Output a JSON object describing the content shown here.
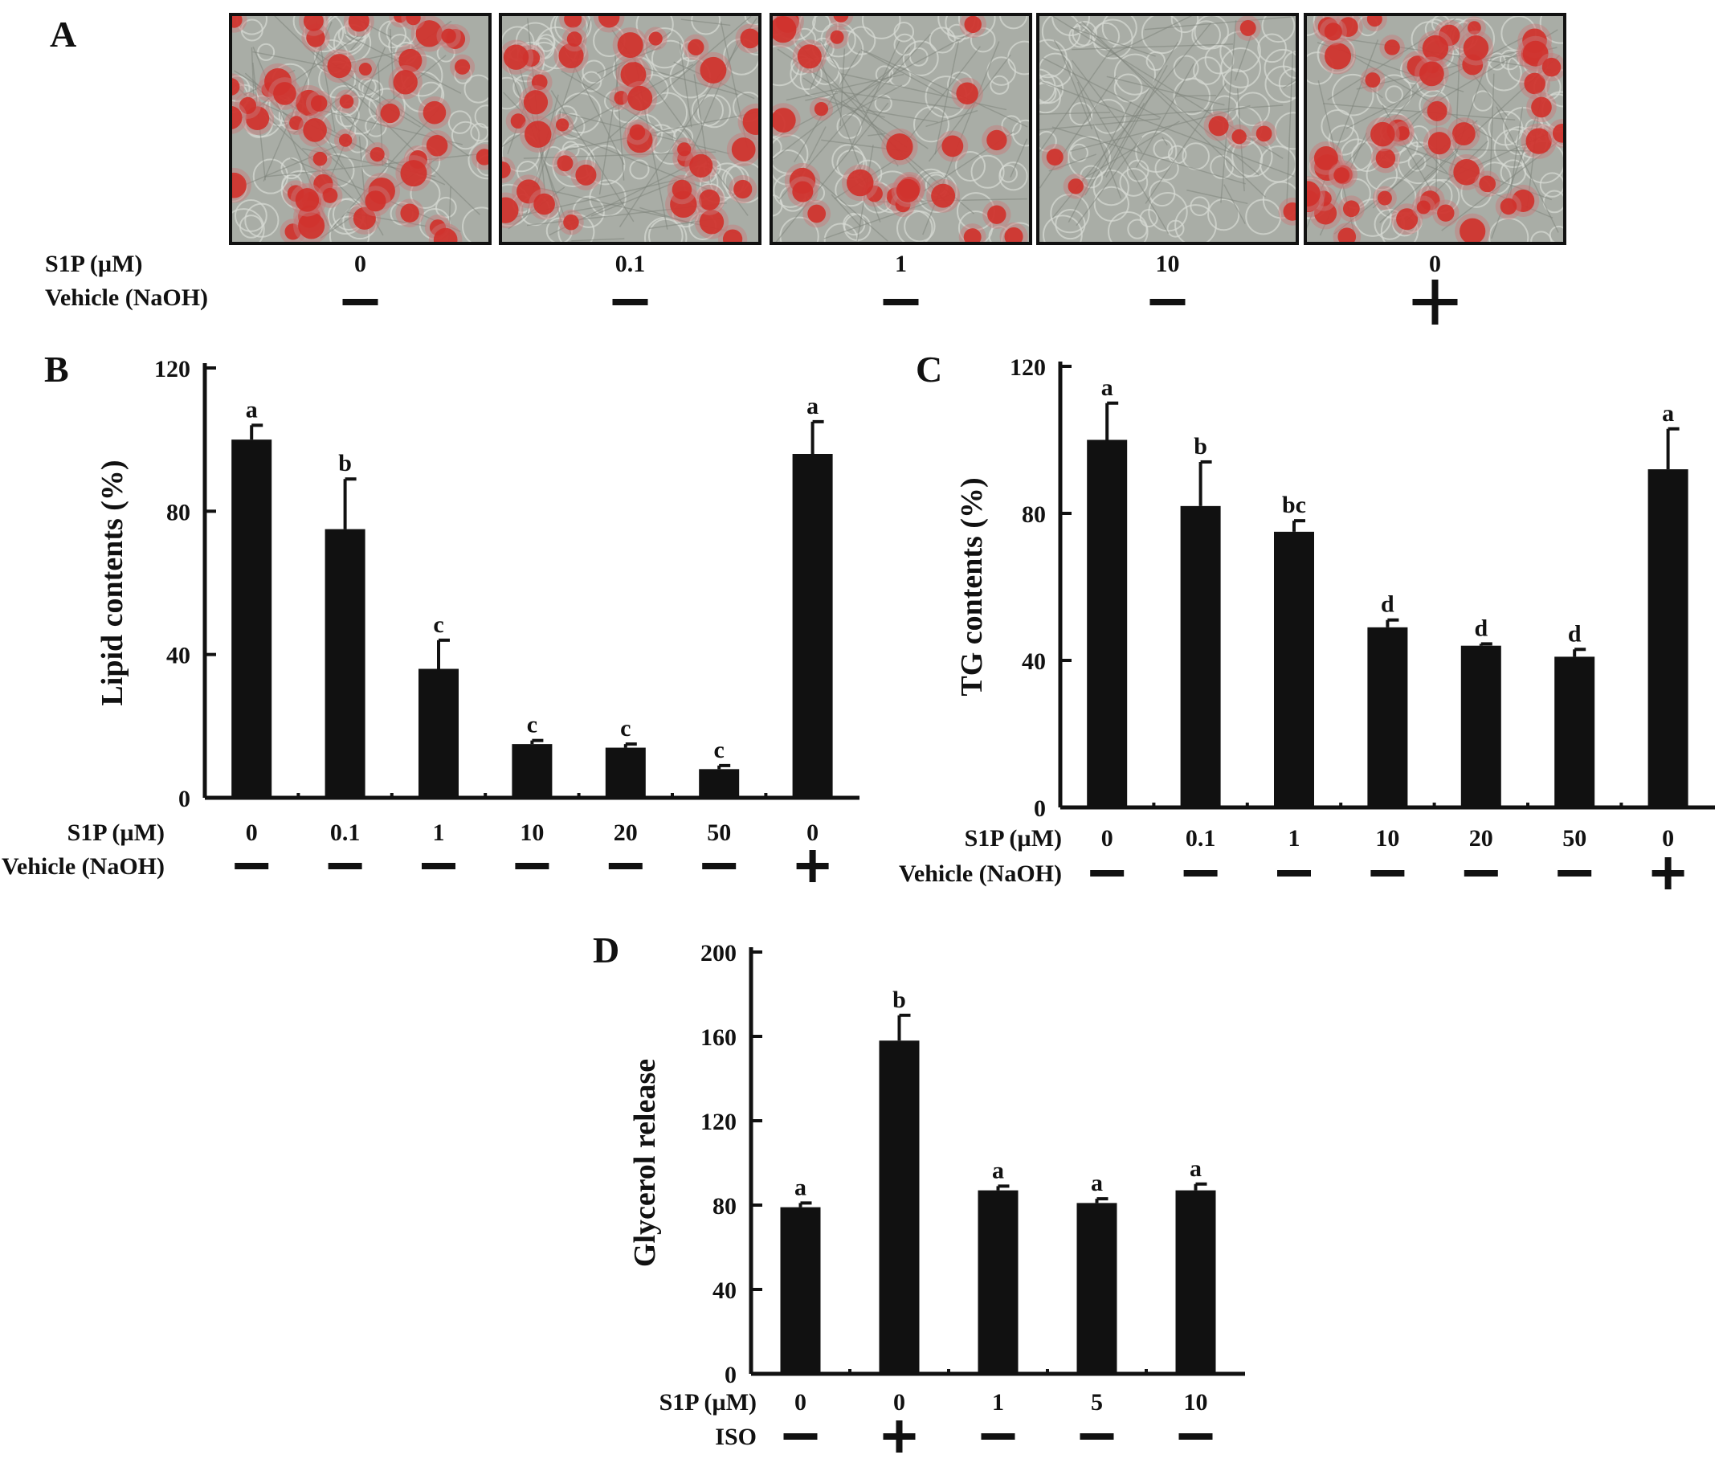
{
  "panel_a": {
    "letter": "A",
    "row_labels": [
      "S1P (µM)",
      "Vehicle (NaOH)"
    ],
    "images": [
      {
        "s1p": "0",
        "vehicle": "—",
        "cell_density": 0.9
      },
      {
        "s1p": "0.1",
        "vehicle": "—",
        "cell_density": 0.7
      },
      {
        "s1p": "1",
        "vehicle": "—",
        "cell_density": 0.45
      },
      {
        "s1p": "10",
        "vehicle": "—",
        "cell_density": 0.12
      },
      {
        "s1p": "0",
        "vehicle": "+",
        "cell_density": 0.9
      }
    ],
    "stain_color": "#d0302a",
    "background_color": "#a9ada6"
  },
  "chart_data": [
    {
      "panel": "B",
      "type": "bar",
      "ylabel": "Lipid contents (%)",
      "ylim": [
        0,
        120
      ],
      "yticks": [
        0,
        40,
        80,
        120
      ],
      "row_labels": [
        "S1P (µM)",
        "Vehicle (NaOH)"
      ],
      "categories": [
        "0",
        "0.1",
        "1",
        "10",
        "20",
        "50",
        "0"
      ],
      "treatment": [
        "—",
        "—",
        "—",
        "—",
        "—",
        "—",
        "+"
      ],
      "values": [
        100,
        75,
        36,
        15,
        14,
        8,
        96
      ],
      "errors": [
        4,
        14,
        8,
        1,
        1,
        1,
        9
      ],
      "sig_labels": [
        "a",
        "b",
        "c",
        "c",
        "c",
        "c",
        "a"
      ],
      "bar_color": "#111111"
    },
    {
      "panel": "C",
      "type": "bar",
      "ylabel": "TG contents (%)",
      "ylim": [
        0,
        120
      ],
      "yticks": [
        0,
        40,
        80,
        120
      ],
      "row_labels": [
        "S1P (µM)",
        "Vehicle (NaOH)"
      ],
      "categories": [
        "0",
        "0.1",
        "1",
        "10",
        "20",
        "50",
        "0"
      ],
      "treatment": [
        "—",
        "—",
        "—",
        "—",
        "—",
        "—",
        "+"
      ],
      "values": [
        100,
        82,
        75,
        49,
        44,
        41,
        92
      ],
      "errors": [
        10,
        12,
        3,
        2,
        0.5,
        2,
        11
      ],
      "sig_labels": [
        "a",
        "b",
        "bc",
        "d",
        "d",
        "d",
        "a"
      ],
      "bar_color": "#111111"
    },
    {
      "panel": "D",
      "type": "bar",
      "ylabel": "Glycerol  release",
      "ylim": [
        0,
        200
      ],
      "yticks": [
        0,
        40,
        80,
        120,
        160,
        200
      ],
      "row_labels": [
        "S1P (µM)",
        "ISO"
      ],
      "categories": [
        "0",
        "0",
        "1",
        "5",
        "10"
      ],
      "treatment": [
        "—",
        "+",
        "—",
        "—",
        "—"
      ],
      "values": [
        79,
        158,
        87,
        81,
        87
      ],
      "errors": [
        2,
        12,
        2,
        2,
        3
      ],
      "sig_labels": [
        "a",
        "b",
        "a",
        "a",
        "a"
      ],
      "bar_color": "#111111"
    }
  ]
}
